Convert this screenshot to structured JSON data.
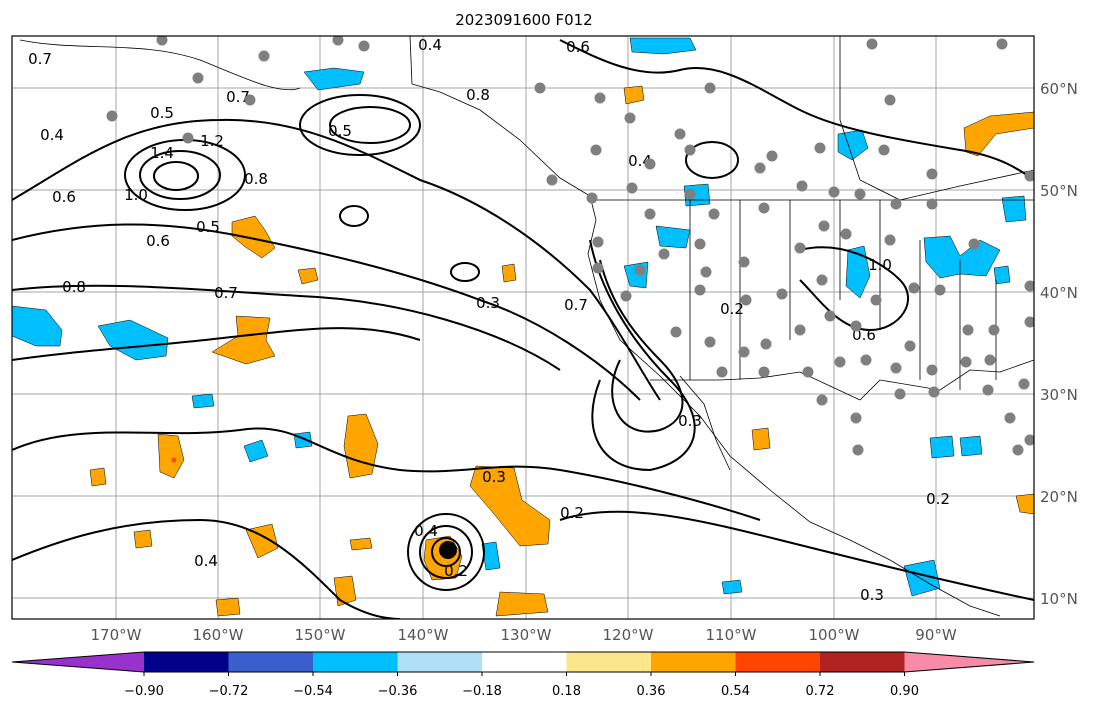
{
  "title": "2023091600 F012",
  "lat_labels": [
    "60°N",
    "50°N",
    "40°N",
    "30°N",
    "20°N",
    "10°N"
  ],
  "lon_labels": [
    "170°W",
    "160°W",
    "150°W",
    "140°W",
    "130°W",
    "120°W",
    "110°W",
    "100°W",
    "90°W"
  ],
  "colorbar": {
    "tick_labels": [
      "−0.90",
      "−0.72",
      "−0.54",
      "−0.36",
      "−0.18",
      "0.18",
      "0.36",
      "0.54",
      "0.72",
      "0.90"
    ],
    "colors": [
      "#9932cc",
      "#00008b",
      "#3a5fcd",
      "#00bfff",
      "#b0e0f8",
      "#ffffff",
      "#fce68a",
      "#ffa500",
      "#ff4500",
      "#b22222",
      "#f88ca8"
    ]
  },
  "contour_labels": [
    "0.4",
    "0.5",
    "0.7",
    "1.0",
    "1.4",
    "1.2",
    "0.8",
    "0.6",
    "0.5",
    "0.7",
    "0.6",
    "0.8",
    "0.7",
    "0.5",
    "0.8",
    "0.4",
    "0.6",
    "0.7",
    "0.3",
    "0.4",
    "0.2",
    "0.3",
    "0.4",
    "0.2",
    "0.3",
    "0.4",
    "0.2",
    "0.3",
    "0.2",
    "0.6",
    "1.0"
  ],
  "colors": {
    "positive_fill": "#ffa500",
    "negative_fill": "#00bfff",
    "station": "#7f7f7f",
    "grid": "#a6a6a6"
  }
}
